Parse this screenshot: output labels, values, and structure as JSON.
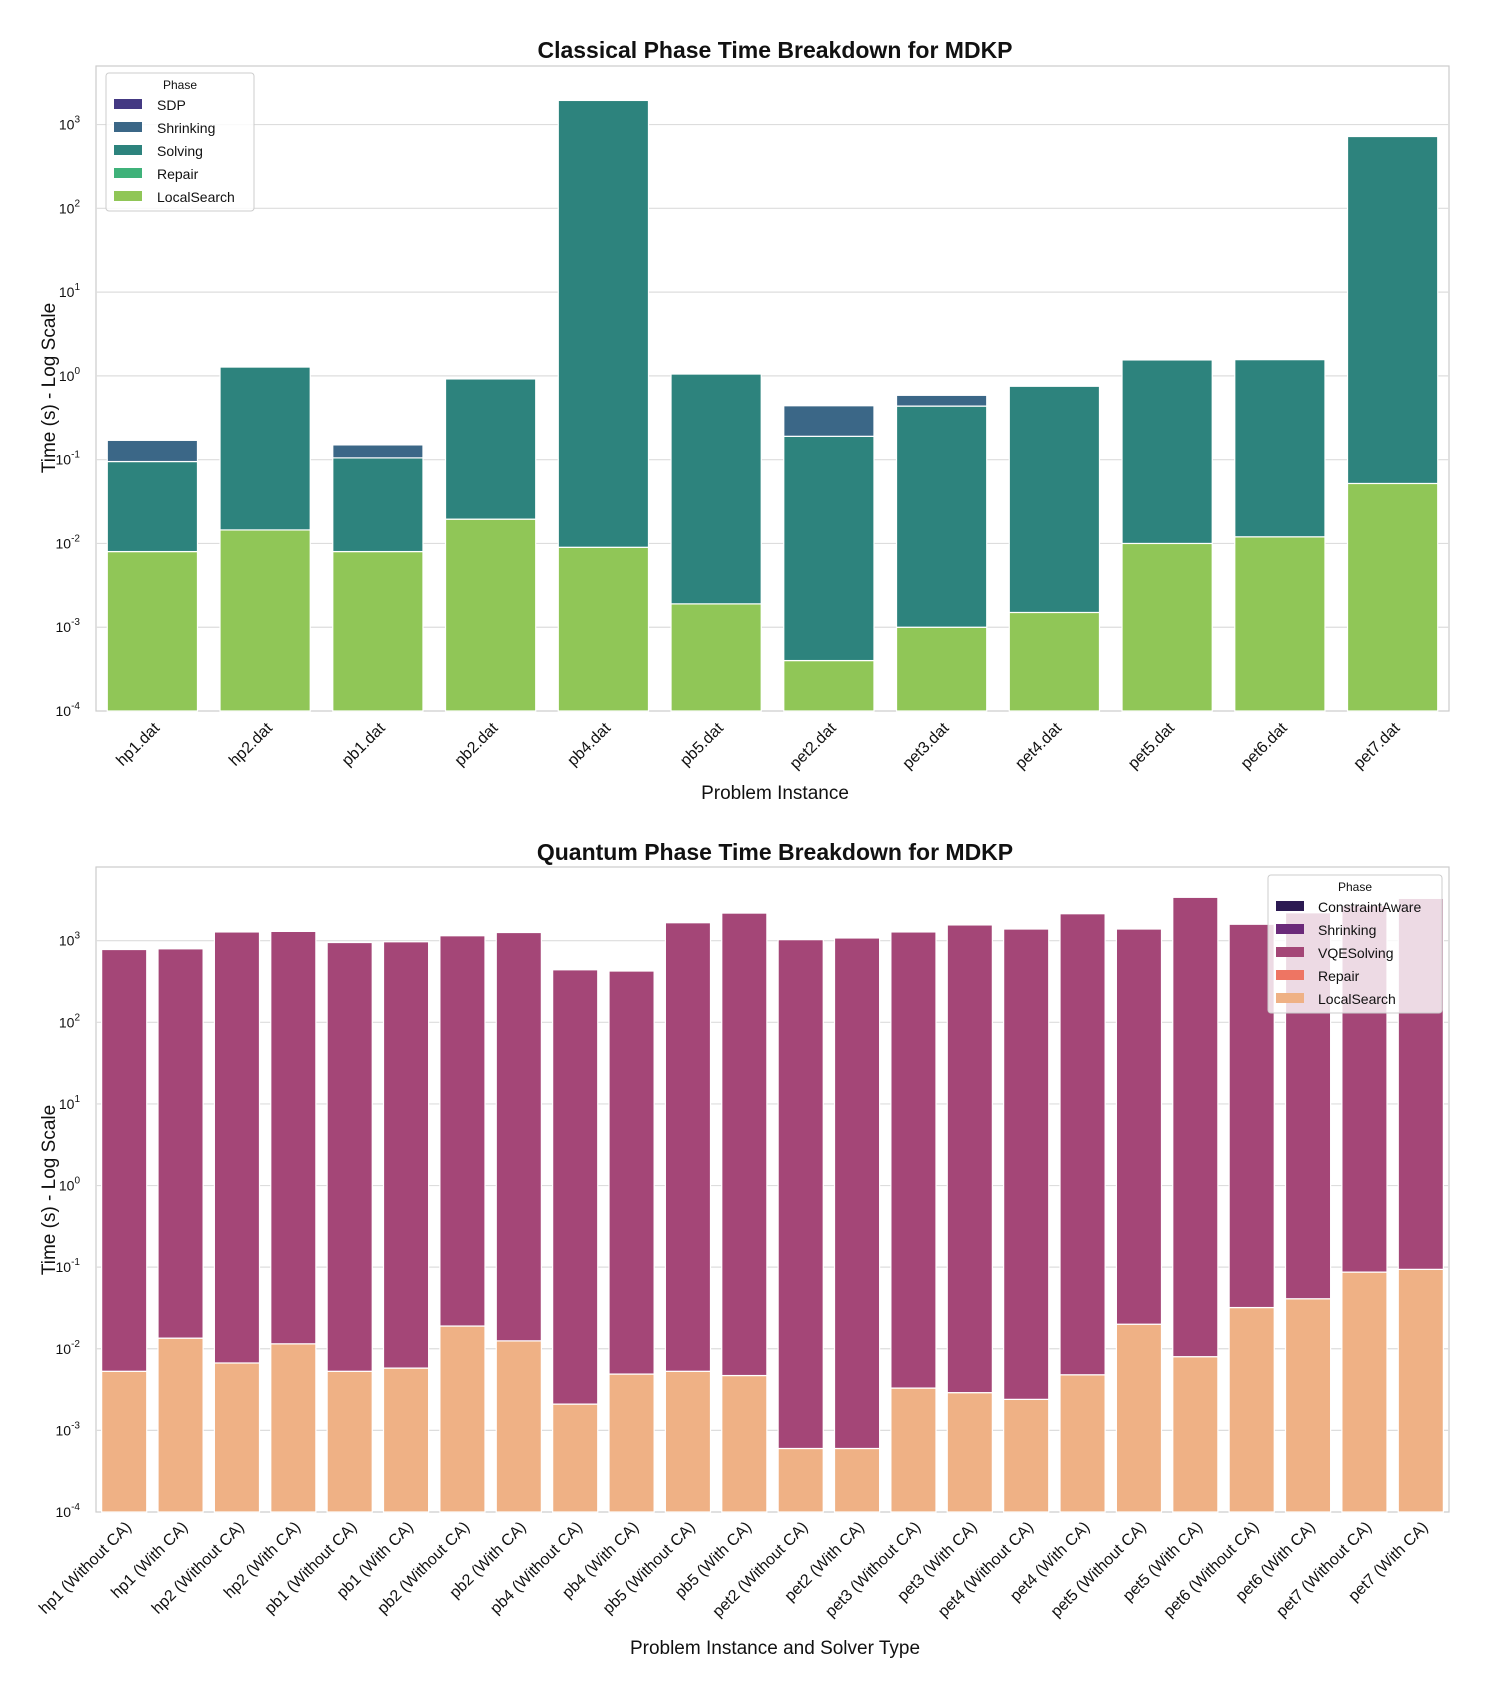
{
  "chart_data": [
    {
      "type": "bar",
      "stacked": true,
      "log_scale": true,
      "title": "Classical Phase Time Breakdown for MDKP",
      "xlabel": "Problem Instance",
      "ylabel": "Time (s) - Log Scale",
      "ylim": [
        0.0001,
        5000
      ],
      "legend": {
        "title": "Phase",
        "position": "top-left"
      },
      "categories": [
        "hp1.dat",
        "hp2.dat",
        "pb1.dat",
        "pb2.dat",
        "pb4.dat",
        "pb5.dat",
        "pet2.dat",
        "pet3.dat",
        "pet4.dat",
        "pet5.dat",
        "pet6.dat",
        "pet7.dat"
      ],
      "series": [
        {
          "name": "SDP",
          "color": "#443983",
          "values": [
            0,
            0,
            0,
            0,
            0,
            0,
            0,
            0,
            0,
            0,
            0,
            0
          ]
        },
        {
          "name": "Shrinking",
          "color": "#3b6787",
          "values": [
            0.075,
            0,
            0.045,
            0,
            0,
            0,
            0.25,
            0.15,
            0,
            0,
            0,
            0
          ]
        },
        {
          "name": "Solving",
          "color": "#2d837d",
          "values": [
            0.087,
            1.26,
            0.097,
            0.9,
            1940,
            1.05,
            0.1896,
            0.435,
            0.75,
            1.54,
            1.55,
            720
          ]
        },
        {
          "name": "Repair",
          "color": "#3fb27a",
          "values": [
            0,
            0,
            0,
            0,
            0,
            0,
            0,
            0,
            0,
            0,
            0,
            0
          ]
        },
        {
          "name": "LocalSearch",
          "color": "#90c657",
          "values": [
            0.008,
            0.0145,
            0.008,
            0.0195,
            0.009,
            0.0019,
            0.0004,
            0.001,
            0.0015,
            0.01,
            0.012,
            0.052
          ]
        }
      ]
    },
    {
      "type": "bar",
      "stacked": true,
      "log_scale": true,
      "title": "Quantum Phase Time Breakdown for MDKP",
      "xlabel": "Problem Instance and Solver Type",
      "ylabel": "Time (s) - Log Scale",
      "ylim": [
        0.0001,
        8000
      ],
      "legend": {
        "title": "Phase",
        "position": "top-right"
      },
      "categories": [
        "hp1 (Without CA)",
        "hp1 (With CA)",
        "hp2 (Without CA)",
        "hp2 (With CA)",
        "pb1 (Without CA)",
        "pb1 (With CA)",
        "pb2 (Without CA)",
        "pb2 (With CA)",
        "pb4 (Without CA)",
        "pb4 (With CA)",
        "pb5 (Without CA)",
        "pb5 (With CA)",
        "pet2 (Without CA)",
        "pet2 (With CA)",
        "pet3 (Without CA)",
        "pet3 (With CA)",
        "pet4 (Without CA)",
        "pet4 (With CA)",
        "pet5 (Without CA)",
        "pet5 (With CA)",
        "pet6 (Without CA)",
        "pet6 (With CA)",
        "pet7 (Without CA)",
        "pet7 (With CA)"
      ],
      "series": [
        {
          "name": "ConstraintAware",
          "color": "#2c1a52",
          "values": [
            0,
            0,
            0,
            0,
            0,
            0,
            0,
            0,
            0,
            0,
            0,
            0,
            0,
            0,
            0,
            0,
            0,
            0,
            0,
            0,
            0,
            0,
            0,
            0
          ]
        },
        {
          "name": "Shrinking",
          "color": "#6b2a7a",
          "values": [
            0,
            0,
            0,
            0,
            0,
            0,
            0,
            0,
            0,
            0,
            0,
            0,
            0,
            0,
            0,
            0,
            0,
            0,
            0,
            0,
            0,
            0,
            0,
            0
          ]
        },
        {
          "name": "VQESolving",
          "color": "#a44677",
          "values": [
            780,
            795,
            1280,
            1300,
            950,
            970,
            1150,
            1260,
            440,
            425,
            1660,
            2180,
            1030,
            1080,
            1280,
            1560,
            1390,
            2140,
            1390,
            3400,
            1590,
            2200,
            2700,
            3300
          ]
        },
        {
          "name": "Repair",
          "color": "#ee7563",
          "values": [
            0,
            0,
            0,
            0,
            0,
            0,
            0,
            0,
            0,
            0,
            0,
            0,
            0,
            0,
            0,
            0,
            0,
            0,
            0,
            0,
            0,
            0,
            0,
            0
          ]
        },
        {
          "name": "LocalSearch",
          "color": "#efb185",
          "values": [
            0.0053,
            0.0135,
            0.0067,
            0.0115,
            0.0053,
            0.0058,
            0.019,
            0.0125,
            0.0021,
            0.0049,
            0.0053,
            0.0047,
            0.0006,
            0.0006,
            0.0033,
            0.0029,
            0.0024,
            0.0048,
            0.02,
            0.008,
            0.032,
            0.041,
            0.087,
            0.094
          ]
        }
      ]
    }
  ]
}
